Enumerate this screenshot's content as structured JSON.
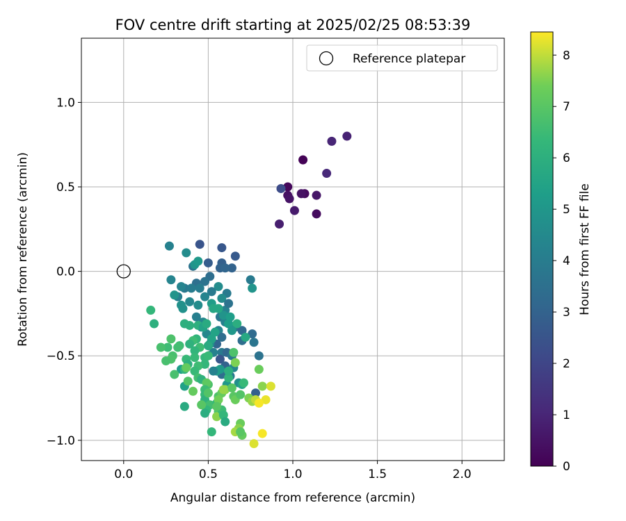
{
  "chart_data": {
    "type": "scatter",
    "title": "FOV centre drift starting at 2025/02/25 08:53:39",
    "xlabel": "Angular distance from reference (arcmin)",
    "ylabel": "Rotation from reference (arcmin)",
    "xlim": [
      -0.25,
      2.25
    ],
    "ylim": [
      -1.12,
      1.38
    ],
    "xticks": [
      0.0,
      0.5,
      1.0,
      1.5,
      2.0
    ],
    "xtick_labels": [
      "0.0",
      "0.5",
      "1.0",
      "1.5",
      "2.0"
    ],
    "yticks": [
      -1.0,
      -0.5,
      0.0,
      0.5,
      1.0
    ],
    "ytick_labels": [
      "−1.0",
      "−0.5",
      "0.0",
      "0.5",
      "1.0"
    ],
    "grid": true,
    "legend": {
      "placement": "top-right",
      "label": "Reference platepar",
      "marker": "open-circle"
    },
    "reference_point": {
      "x": 0.0,
      "y": 0.0
    },
    "colorbar": {
      "label": "Hours from first FF file",
      "range": [
        0,
        8.45
      ],
      "ticks": [
        0,
        1,
        2,
        3,
        4,
        5,
        6,
        7,
        8
      ],
      "tick_labels": [
        "0",
        "1",
        "2",
        "3",
        "4",
        "5",
        "6",
        "7",
        "8"
      ],
      "colormap": "viridis"
    },
    "points": [
      {
        "x": 1.06,
        "y": 0.66,
        "h": 0.05
      },
      {
        "x": 0.97,
        "y": 0.5,
        "h": 0.2
      },
      {
        "x": 1.07,
        "y": 0.46,
        "h": 0.25
      },
      {
        "x": 1.14,
        "y": 0.34,
        "h": 0.3
      },
      {
        "x": 0.97,
        "y": 0.45,
        "h": 0.4
      },
      {
        "x": 1.05,
        "y": 0.46,
        "h": 0.45
      },
      {
        "x": 0.98,
        "y": 0.43,
        "h": 0.5
      },
      {
        "x": 1.14,
        "y": 0.45,
        "h": 0.6
      },
      {
        "x": 1.01,
        "y": 0.36,
        "h": 0.7
      },
      {
        "x": 0.92,
        "y": 0.28,
        "h": 0.8
      },
      {
        "x": 1.32,
        "y": 0.8,
        "h": 0.9
      },
      {
        "x": 1.23,
        "y": 0.77,
        "h": 1.0
      },
      {
        "x": 1.2,
        "y": 0.58,
        "h": 1.1
      },
      {
        "x": 0.93,
        "y": 0.49,
        "h": 2.2
      },
      {
        "x": 0.45,
        "y": 0.16,
        "h": 2.5
      },
      {
        "x": 0.58,
        "y": 0.14,
        "h": 2.6
      },
      {
        "x": 0.66,
        "y": 0.09,
        "h": 2.7
      },
      {
        "x": 0.5,
        "y": 0.05,
        "h": 2.8
      },
      {
        "x": 0.58,
        "y": 0.05,
        "h": 2.9
      },
      {
        "x": 0.64,
        "y": 0.02,
        "h": 3.0
      },
      {
        "x": 0.57,
        "y": 0.02,
        "h": 3.0
      },
      {
        "x": 0.6,
        "y": 0.02,
        "h": 3.1
      },
      {
        "x": 0.41,
        "y": 0.03,
        "h": 3.6
      },
      {
        "x": 0.51,
        "y": -0.03,
        "h": 3.4
      },
      {
        "x": 0.48,
        "y": -0.06,
        "h": 3.6
      },
      {
        "x": 0.43,
        "y": -0.07,
        "h": 3.5
      },
      {
        "x": 0.36,
        "y": -0.1,
        "h": 3.8
      },
      {
        "x": 0.4,
        "y": -0.1,
        "h": 4.0
      },
      {
        "x": 0.45,
        "y": -0.1,
        "h": 4.0
      },
      {
        "x": 0.56,
        "y": -0.09,
        "h": 4.6
      },
      {
        "x": 0.61,
        "y": -0.13,
        "h": 3.9
      },
      {
        "x": 0.52,
        "y": -0.12,
        "h": 3.9
      },
      {
        "x": 0.48,
        "y": -0.15,
        "h": 4.3
      },
      {
        "x": 0.32,
        "y": -0.15,
        "h": 4.1
      },
      {
        "x": 0.34,
        "y": -0.09,
        "h": 4.3
      },
      {
        "x": 0.39,
        "y": -0.18,
        "h": 4.4
      },
      {
        "x": 0.44,
        "y": -0.2,
        "h": 4.6
      },
      {
        "x": 0.28,
        "y": -0.05,
        "h": 4.3
      },
      {
        "x": 0.27,
        "y": 0.15,
        "h": 4.2
      },
      {
        "x": 0.37,
        "y": 0.11,
        "h": 4.6
      },
      {
        "x": 0.42,
        "y": 0.04,
        "h": 4.9
      },
      {
        "x": 0.44,
        "y": 0.06,
        "h": 5.1
      },
      {
        "x": 0.3,
        "y": -0.14,
        "h": 4.9
      },
      {
        "x": 0.34,
        "y": -0.2,
        "h": 4.8
      },
      {
        "x": 0.35,
        "y": -0.22,
        "h": 4.8
      },
      {
        "x": 0.52,
        "y": -0.19,
        "h": 5.2
      },
      {
        "x": 0.58,
        "y": -0.16,
        "h": 4.6
      },
      {
        "x": 0.6,
        "y": -0.23,
        "h": 4.2
      },
      {
        "x": 0.57,
        "y": -0.27,
        "h": 3.8
      },
      {
        "x": 0.62,
        "y": -0.19,
        "h": 3.6
      },
      {
        "x": 0.66,
        "y": -0.33,
        "h": 3.5
      },
      {
        "x": 0.7,
        "y": -0.35,
        "h": 3.2
      },
      {
        "x": 0.7,
        "y": -0.41,
        "h": 3.4
      },
      {
        "x": 0.76,
        "y": -0.37,
        "h": 3.3
      },
      {
        "x": 0.75,
        "y": -0.05,
        "h": 3.9
      },
      {
        "x": 0.76,
        "y": -0.1,
        "h": 4.9
      },
      {
        "x": 0.8,
        "y": -0.5,
        "h": 3.6
      },
      {
        "x": 0.77,
        "y": -0.42,
        "h": 3.7
      },
      {
        "x": 0.6,
        "y": -0.3,
        "h": 4.2
      },
      {
        "x": 0.56,
        "y": -0.35,
        "h": 4.3
      },
      {
        "x": 0.58,
        "y": -0.39,
        "h": 3.4
      },
      {
        "x": 0.55,
        "y": -0.43,
        "h": 3.1
      },
      {
        "x": 0.49,
        "y": -0.37,
        "h": 4.4
      },
      {
        "x": 0.47,
        "y": -0.3,
        "h": 4.4
      },
      {
        "x": 0.43,
        "y": -0.27,
        "h": 4.1
      },
      {
        "x": 0.46,
        "y": -0.33,
        "h": 4.4
      },
      {
        "x": 0.51,
        "y": -0.43,
        "h": 4.6
      },
      {
        "x": 0.53,
        "y": -0.48,
        "h": 4.2
      },
      {
        "x": 0.58,
        "y": -0.48,
        "h": 3.9
      },
      {
        "x": 0.61,
        "y": -0.48,
        "h": 3.2
      },
      {
        "x": 0.57,
        "y": -0.52,
        "h": 2.6
      },
      {
        "x": 0.6,
        "y": -0.56,
        "h": 3.0
      },
      {
        "x": 0.64,
        "y": -0.5,
        "h": 3.8
      },
      {
        "x": 0.65,
        "y": -0.57,
        "h": 4.4
      },
      {
        "x": 0.63,
        "y": -0.62,
        "h": 3.9
      },
      {
        "x": 0.58,
        "y": -0.61,
        "h": 3.4
      },
      {
        "x": 0.57,
        "y": -0.58,
        "h": 5.1
      },
      {
        "x": 0.55,
        "y": -0.59,
        "h": 5.2
      },
      {
        "x": 0.53,
        "y": -0.59,
        "h": 4.2
      },
      {
        "x": 0.61,
        "y": -0.67,
        "h": 5.0
      },
      {
        "x": 0.68,
        "y": -0.66,
        "h": 4.7
      },
      {
        "x": 0.7,
        "y": -0.67,
        "h": 5.5
      },
      {
        "x": 0.78,
        "y": -0.72,
        "h": 2.9
      },
      {
        "x": 0.59,
        "y": -0.26,
        "h": 4.9
      },
      {
        "x": 0.56,
        "y": -0.22,
        "h": 5.6
      },
      {
        "x": 0.53,
        "y": -0.22,
        "h": 5.6
      },
      {
        "x": 0.63,
        "y": -0.27,
        "h": 5.3
      },
      {
        "x": 0.62,
        "y": -0.31,
        "h": 5.3
      },
      {
        "x": 0.67,
        "y": -0.31,
        "h": 5.9
      },
      {
        "x": 0.64,
        "y": -0.35,
        "h": 5.0
      },
      {
        "x": 0.72,
        "y": -0.39,
        "h": 5.7
      },
      {
        "x": 0.54,
        "y": -0.36,
        "h": 5.5
      },
      {
        "x": 0.52,
        "y": -0.4,
        "h": 5.5
      },
      {
        "x": 0.5,
        "y": -0.44,
        "h": 5.8
      },
      {
        "x": 0.43,
        "y": -0.4,
        "h": 6.2
      },
      {
        "x": 0.45,
        "y": -0.45,
        "h": 6.5
      },
      {
        "x": 0.41,
        "y": -0.41,
        "h": 6.5
      },
      {
        "x": 0.44,
        "y": -0.32,
        "h": 6.0
      },
      {
        "x": 0.47,
        "y": -0.33,
        "h": 5.5
      },
      {
        "x": 0.49,
        "y": -0.31,
        "h": 5.8
      },
      {
        "x": 0.39,
        "y": -0.32,
        "h": 6.0
      },
      {
        "x": 0.36,
        "y": -0.31,
        "h": 6.0
      },
      {
        "x": 0.39,
        "y": -0.43,
        "h": 6.1
      },
      {
        "x": 0.42,
        "y": -0.47,
        "h": 6.2
      },
      {
        "x": 0.48,
        "y": -0.51,
        "h": 6.3
      },
      {
        "x": 0.5,
        "y": -0.5,
        "h": 6.4
      },
      {
        "x": 0.48,
        "y": -0.55,
        "h": 6.3
      },
      {
        "x": 0.44,
        "y": -0.56,
        "h": 6.5
      },
      {
        "x": 0.42,
        "y": -0.51,
        "h": 6.4
      },
      {
        "x": 0.33,
        "y": -0.44,
        "h": 6.5
      },
      {
        "x": 0.32,
        "y": -0.45,
        "h": 6.6
      },
      {
        "x": 0.26,
        "y": -0.45,
        "h": 6.5
      },
      {
        "x": 0.22,
        "y": -0.45,
        "h": 6.7
      },
      {
        "x": 0.29,
        "y": -0.5,
        "h": 6.7
      },
      {
        "x": 0.28,
        "y": -0.52,
        "h": 6.8
      },
      {
        "x": 0.25,
        "y": -0.53,
        "h": 6.7
      },
      {
        "x": 0.34,
        "y": -0.58,
        "h": 5.3
      },
      {
        "x": 0.37,
        "y": -0.52,
        "h": 6.4
      },
      {
        "x": 0.36,
        "y": -0.58,
        "h": 6.2
      },
      {
        "x": 0.38,
        "y": -0.55,
        "h": 6.0
      },
      {
        "x": 0.42,
        "y": -0.59,
        "h": 6.4
      },
      {
        "x": 0.44,
        "y": -0.63,
        "h": 6.6
      },
      {
        "x": 0.36,
        "y": -0.68,
        "h": 5.4
      },
      {
        "x": 0.36,
        "y": -0.8,
        "h": 5.8
      },
      {
        "x": 0.3,
        "y": -0.61,
        "h": 6.7
      },
      {
        "x": 0.38,
        "y": -0.65,
        "h": 6.9
      },
      {
        "x": 0.37,
        "y": -0.57,
        "h": 7.2
      },
      {
        "x": 0.28,
        "y": -0.4,
        "h": 6.8
      },
      {
        "x": 0.16,
        "y": -0.23,
        "h": 6.3
      },
      {
        "x": 0.18,
        "y": -0.31,
        "h": 6.0
      },
      {
        "x": 0.46,
        "y": -0.64,
        "h": 6.1
      },
      {
        "x": 0.5,
        "y": -0.67,
        "h": 6.8
      },
      {
        "x": 0.49,
        "y": -0.66,
        "h": 7.1
      },
      {
        "x": 0.48,
        "y": -0.7,
        "h": 6.5
      },
      {
        "x": 0.48,
        "y": -0.73,
        "h": 6.4
      },
      {
        "x": 0.48,
        "y": -0.76,
        "h": 6.1
      },
      {
        "x": 0.51,
        "y": -0.79,
        "h": 6.6
      },
      {
        "x": 0.49,
        "y": -0.82,
        "h": 6.3
      },
      {
        "x": 0.48,
        "y": -0.84,
        "h": 5.9
      },
      {
        "x": 0.55,
        "y": -0.78,
        "h": 6.4
      },
      {
        "x": 0.56,
        "y": -0.74,
        "h": 6.8
      },
      {
        "x": 0.58,
        "y": -0.72,
        "h": 7.2
      },
      {
        "x": 0.6,
        "y": -0.7,
        "h": 7.6
      },
      {
        "x": 0.56,
        "y": -0.76,
        "h": 7.4
      },
      {
        "x": 0.56,
        "y": -0.83,
        "h": 6.8
      },
      {
        "x": 0.57,
        "y": -0.85,
        "h": 7.1
      },
      {
        "x": 0.55,
        "y": -0.86,
        "h": 7.6
      },
      {
        "x": 0.58,
        "y": -0.82,
        "h": 6.5
      },
      {
        "x": 0.59,
        "y": -0.85,
        "h": 6.3
      },
      {
        "x": 0.6,
        "y": -0.89,
        "h": 5.8
      },
      {
        "x": 0.52,
        "y": -0.95,
        "h": 6.3
      },
      {
        "x": 0.62,
        "y": -0.63,
        "h": 6.2
      },
      {
        "x": 0.62,
        "y": -0.59,
        "h": 6.0
      },
      {
        "x": 0.65,
        "y": -0.48,
        "h": 6.8
      },
      {
        "x": 0.66,
        "y": -0.54,
        "h": 7.5
      },
      {
        "x": 0.64,
        "y": -0.69,
        "h": 7.0
      },
      {
        "x": 0.65,
        "y": -0.74,
        "h": 7.0
      },
      {
        "x": 0.66,
        "y": -0.76,
        "h": 7.3
      },
      {
        "x": 0.69,
        "y": -0.73,
        "h": 6.9
      },
      {
        "x": 0.71,
        "y": -0.66,
        "h": 6.4
      },
      {
        "x": 0.74,
        "y": -0.75,
        "h": 7.5
      },
      {
        "x": 0.76,
        "y": -0.77,
        "h": 7.7
      },
      {
        "x": 0.78,
        "y": -0.76,
        "h": 8.0
      },
      {
        "x": 0.82,
        "y": -0.68,
        "h": 7.6
      },
      {
        "x": 0.8,
        "y": -0.58,
        "h": 7.3
      },
      {
        "x": 0.87,
        "y": -0.68,
        "h": 8.2
      },
      {
        "x": 0.84,
        "y": -0.76,
        "h": 8.3
      },
      {
        "x": 0.8,
        "y": -0.78,
        "h": 8.4
      },
      {
        "x": 0.69,
        "y": -0.9,
        "h": 7.3
      },
      {
        "x": 0.68,
        "y": -0.93,
        "h": 7.6
      },
      {
        "x": 0.66,
        "y": -0.95,
        "h": 7.8
      },
      {
        "x": 0.7,
        "y": -0.97,
        "h": 7.2
      },
      {
        "x": 0.82,
        "y": -0.96,
        "h": 8.4
      },
      {
        "x": 0.77,
        "y": -1.02,
        "h": 8.2
      },
      {
        "x": 0.69,
        "y": -0.95,
        "h": 7.0
      },
      {
        "x": 0.59,
        "y": -0.7,
        "h": 7.7
      },
      {
        "x": 0.55,
        "y": -0.8,
        "h": 7.0
      },
      {
        "x": 0.41,
        "y": -0.71,
        "h": 7.2
      },
      {
        "x": 0.46,
        "y": -0.79,
        "h": 7.0
      },
      {
        "x": 0.5,
        "y": -0.72,
        "h": 6.9
      }
    ]
  }
}
